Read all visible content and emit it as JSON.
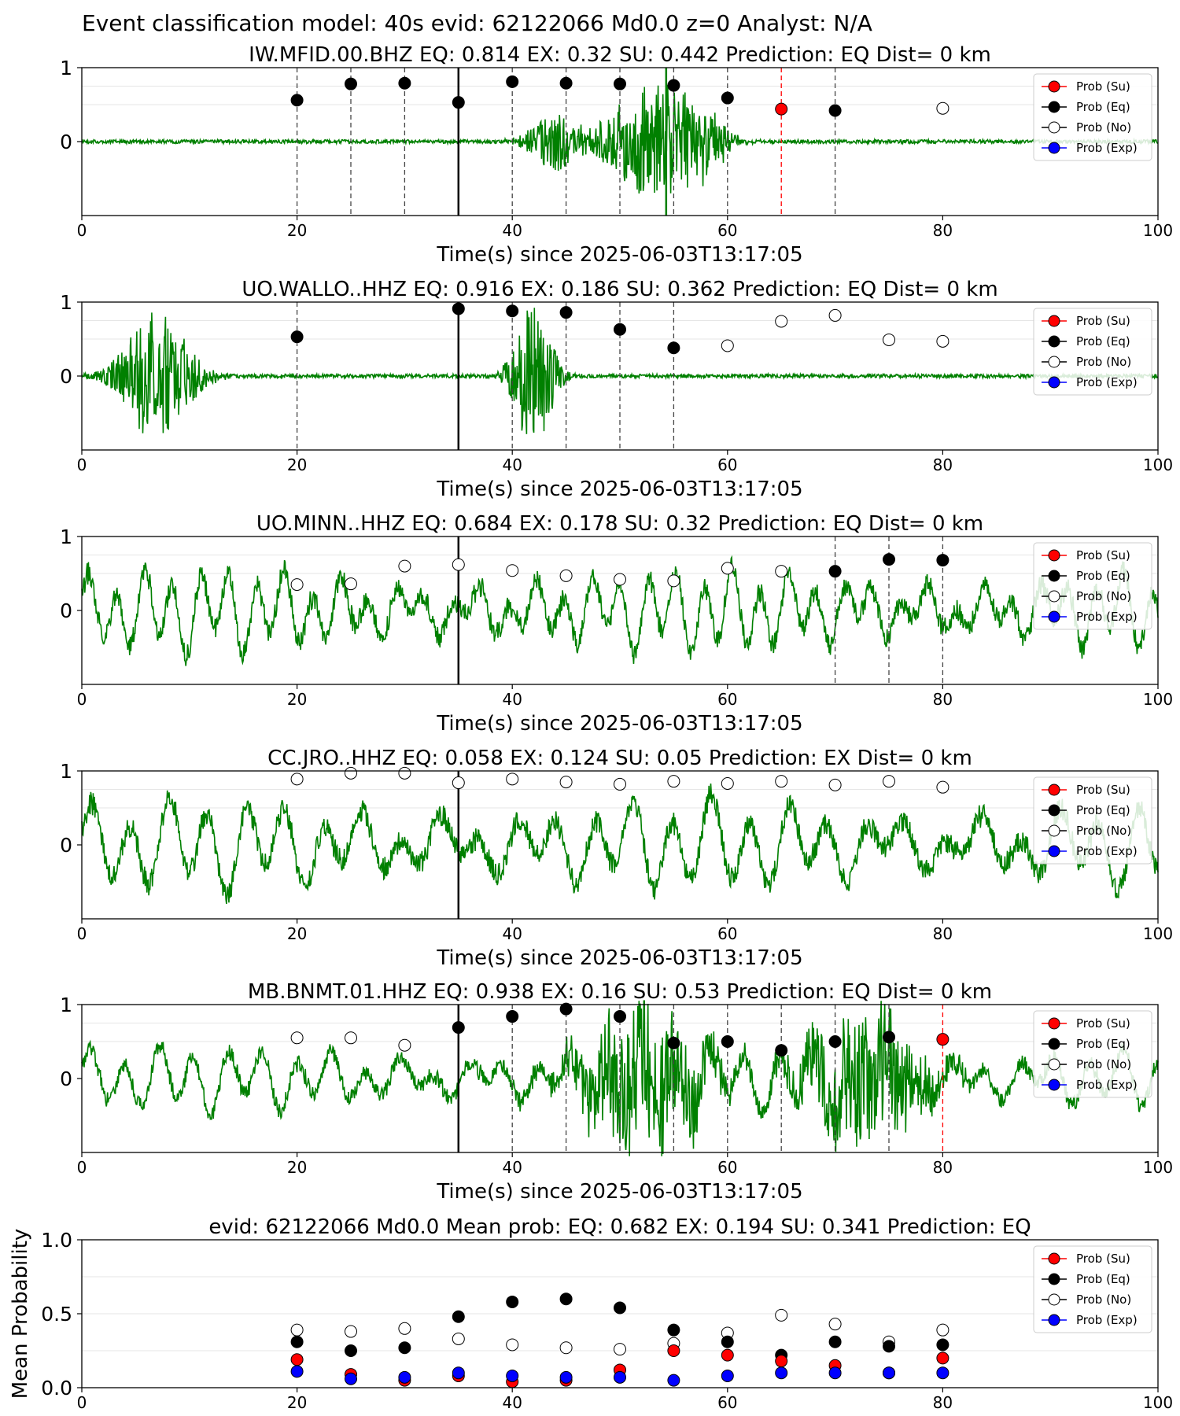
{
  "suptitle": "Event classification model: 40s evid: 62122066 Md0.0 z=0 Analyst: N/A",
  "colors": {
    "waveform": "#008000",
    "su": "#ff0000",
    "eq": "#000000",
    "no": "#ffffff",
    "exp": "#0000ff",
    "pick_line": "#000000",
    "su_line": "#ff0000",
    "grid": "#e6e6e6"
  },
  "legend_labels": [
    "Prob (Su)",
    "Prob (Eq)",
    "Prob (No)",
    "Prob (Exp)"
  ],
  "chart_data": [
    {
      "type": "scatter",
      "id": "station-1",
      "title": "IW.MFID.00.BHZ   EQ: 0.814  EX: 0.32  SU: 0.442   Prediction: EQ    Dist= 0 km",
      "xlabel": "Time(s) since 2025-06-03T13:17:05",
      "xlim": [
        0,
        100
      ],
      "ylim": [
        -1,
        1
      ],
      "xticks": [
        "0",
        "20",
        "40",
        "60",
        "80",
        "100"
      ],
      "yticks": [
        "0",
        "1"
      ],
      "legend_position": "top-right",
      "pick_time": 35,
      "marked_lines": [
        {
          "x": 54.3,
          "color": "green"
        }
      ],
      "waveform": {
        "style": "burst",
        "bursts": [
          {
            "t": 44,
            "a": 0.35,
            "w": 2.5
          },
          {
            "t": 53,
            "a": 0.7,
            "w": 4.5
          },
          {
            "t": 57,
            "a": 0.4,
            "w": 3
          }
        ]
      },
      "points": [
        {
          "x": 20,
          "y": 0.56,
          "cls": "eq",
          "line": true
        },
        {
          "x": 25,
          "y": 0.78,
          "cls": "eq",
          "line": true
        },
        {
          "x": 30,
          "y": 0.79,
          "cls": "eq",
          "line": true
        },
        {
          "x": 35,
          "y": 0.53,
          "cls": "eq",
          "line": true
        },
        {
          "x": 40,
          "y": 0.81,
          "cls": "eq",
          "line": true
        },
        {
          "x": 45,
          "y": 0.79,
          "cls": "eq",
          "line": true
        },
        {
          "x": 50,
          "y": 0.78,
          "cls": "eq",
          "line": true
        },
        {
          "x": 55,
          "y": 0.76,
          "cls": "eq",
          "line": true
        },
        {
          "x": 60,
          "y": 0.59,
          "cls": "eq",
          "line": true
        },
        {
          "x": 65,
          "y": 0.44,
          "cls": "su",
          "line": true
        },
        {
          "x": 70,
          "y": 0.42,
          "cls": "eq",
          "line": true
        },
        {
          "x": 80,
          "y": 0.45,
          "cls": "no",
          "line": false
        }
      ]
    },
    {
      "type": "scatter",
      "id": "station-2",
      "title": "UO.WALLO..HHZ   EQ: 0.916  EX: 0.186  SU: 0.362   Prediction: EQ    Dist= 0 km",
      "xlabel": "Time(s) since 2025-06-03T13:17:05",
      "xlim": [
        0,
        100
      ],
      "ylim": [
        -1,
        1
      ],
      "xticks": [
        "0",
        "20",
        "40",
        "60",
        "80",
        "100"
      ],
      "yticks": [
        "0",
        "1"
      ],
      "legend_position": "top-right",
      "pick_time": 35,
      "marked_lines": [],
      "waveform": {
        "style": "burst",
        "bursts": [
          {
            "t": 7,
            "a": 0.8,
            "w": 3.5
          },
          {
            "t": 42,
            "a": 0.9,
            "w": 2
          }
        ]
      },
      "points": [
        {
          "x": 20,
          "y": 0.53,
          "cls": "eq",
          "line": true
        },
        {
          "x": 35,
          "y": 0.91,
          "cls": "eq",
          "line": true
        },
        {
          "x": 40,
          "y": 0.88,
          "cls": "eq",
          "line": true
        },
        {
          "x": 45,
          "y": 0.86,
          "cls": "eq",
          "line": true
        },
        {
          "x": 50,
          "y": 0.63,
          "cls": "eq",
          "line": true
        },
        {
          "x": 55,
          "y": 0.38,
          "cls": "eq",
          "line": true
        },
        {
          "x": 60,
          "y": 0.41,
          "cls": "no",
          "line": false
        },
        {
          "x": 65,
          "y": 0.74,
          "cls": "no",
          "line": false
        },
        {
          "x": 70,
          "y": 0.82,
          "cls": "no",
          "line": false
        },
        {
          "x": 75,
          "y": 0.49,
          "cls": "no",
          "line": false
        },
        {
          "x": 80,
          "y": 0.47,
          "cls": "no",
          "line": false
        }
      ]
    },
    {
      "type": "scatter",
      "id": "station-3",
      "title": "UO.MINN..HHZ   EQ: 0.684  EX: 0.178  SU: 0.32   Prediction: EQ    Dist= 0 km",
      "xlabel": "Time(s) since 2025-06-03T13:17:05",
      "xlim": [
        0,
        100
      ],
      "ylim": [
        -1,
        1
      ],
      "xticks": [
        "0",
        "20",
        "40",
        "60",
        "80",
        "100"
      ],
      "yticks": [
        "0",
        "1"
      ],
      "legend_position": "top-right",
      "pick_time": 35,
      "marked_lines": [],
      "waveform": {
        "style": "wave",
        "amp": 0.45,
        "period": 2.6
      },
      "points": [
        {
          "x": 20,
          "y": 0.35,
          "cls": "no",
          "line": false
        },
        {
          "x": 25,
          "y": 0.36,
          "cls": "no",
          "line": false
        },
        {
          "x": 30,
          "y": 0.6,
          "cls": "no",
          "line": false
        },
        {
          "x": 35,
          "y": 0.62,
          "cls": "no",
          "line": false
        },
        {
          "x": 40,
          "y": 0.54,
          "cls": "no",
          "line": false
        },
        {
          "x": 45,
          "y": 0.47,
          "cls": "no",
          "line": false
        },
        {
          "x": 50,
          "y": 0.42,
          "cls": "no",
          "line": false
        },
        {
          "x": 55,
          "y": 0.4,
          "cls": "no",
          "line": false
        },
        {
          "x": 60,
          "y": 0.57,
          "cls": "no",
          "line": false
        },
        {
          "x": 65,
          "y": 0.53,
          "cls": "no",
          "line": false
        },
        {
          "x": 70,
          "y": 0.53,
          "cls": "eq",
          "line": true
        },
        {
          "x": 75,
          "y": 0.69,
          "cls": "eq",
          "line": true
        },
        {
          "x": 80,
          "y": 0.68,
          "cls": "eq",
          "line": true
        }
      ]
    },
    {
      "type": "scatter",
      "id": "station-4",
      "title": "CC.JRO..HHZ   EQ: 0.058  EX: 0.124  SU: 0.05   Prediction: EX    Dist= 0 km",
      "xlabel": "Time(s) since 2025-06-03T13:17:05",
      "xlim": [
        0,
        100
      ],
      "ylim": [
        -1,
        1
      ],
      "xticks": [
        "0",
        "20",
        "40",
        "60",
        "80",
        "100"
      ],
      "yticks": [
        "0",
        "1"
      ],
      "legend_position": "top-right",
      "pick_time": 35,
      "marked_lines": [],
      "waveform": {
        "style": "wave",
        "amp": 0.5,
        "period": 3.6
      },
      "points": [
        {
          "x": 20,
          "y": 0.89,
          "cls": "no",
          "line": false
        },
        {
          "x": 25,
          "y": 0.97,
          "cls": "no",
          "line": false
        },
        {
          "x": 30,
          "y": 0.97,
          "cls": "no",
          "line": false
        },
        {
          "x": 35,
          "y": 0.84,
          "cls": "no",
          "line": false
        },
        {
          "x": 40,
          "y": 0.89,
          "cls": "no",
          "line": false
        },
        {
          "x": 45,
          "y": 0.85,
          "cls": "no",
          "line": false
        },
        {
          "x": 50,
          "y": 0.82,
          "cls": "no",
          "line": false
        },
        {
          "x": 55,
          "y": 0.86,
          "cls": "no",
          "line": false
        },
        {
          "x": 60,
          "y": 0.83,
          "cls": "no",
          "line": false
        },
        {
          "x": 65,
          "y": 0.86,
          "cls": "no",
          "line": false
        },
        {
          "x": 70,
          "y": 0.81,
          "cls": "no",
          "line": false
        },
        {
          "x": 75,
          "y": 0.86,
          "cls": "no",
          "line": false
        },
        {
          "x": 80,
          "y": 0.78,
          "cls": "no",
          "line": false
        }
      ]
    },
    {
      "type": "scatter",
      "id": "station-5",
      "title": "MB.BNMT.01.HHZ   EQ: 0.938  EX: 0.16  SU: 0.53   Prediction: EQ    Dist= 0 km",
      "xlabel": "Time(s) since 2025-06-03T13:17:05",
      "xlim": [
        0,
        100
      ],
      "ylim": [
        -1,
        1
      ],
      "xticks": [
        "0",
        "20",
        "40",
        "60",
        "80",
        "100"
      ],
      "yticks": [
        "0",
        "1"
      ],
      "legend_position": "top-right",
      "pick_time": 35,
      "marked_lines": [],
      "waveform": {
        "style": "mixed",
        "amp": 0.35,
        "period": 3.2,
        "bursts": [
          {
            "t": 52,
            "a": 0.85,
            "w": 6
          },
          {
            "t": 73,
            "a": 0.8,
            "w": 6
          }
        ]
      },
      "points": [
        {
          "x": 20,
          "y": 0.55,
          "cls": "no",
          "line": false
        },
        {
          "x": 25,
          "y": 0.55,
          "cls": "no",
          "line": false
        },
        {
          "x": 30,
          "y": 0.45,
          "cls": "no",
          "line": false
        },
        {
          "x": 35,
          "y": 0.69,
          "cls": "eq",
          "line": false
        },
        {
          "x": 40,
          "y": 0.84,
          "cls": "eq",
          "line": true
        },
        {
          "x": 45,
          "y": 0.94,
          "cls": "eq",
          "line": true
        },
        {
          "x": 50,
          "y": 0.84,
          "cls": "eq",
          "line": true
        },
        {
          "x": 55,
          "y": 0.48,
          "cls": "eq",
          "line": true
        },
        {
          "x": 60,
          "y": 0.5,
          "cls": "eq",
          "line": true
        },
        {
          "x": 65,
          "y": 0.38,
          "cls": "eq",
          "line": true
        },
        {
          "x": 70,
          "y": 0.5,
          "cls": "eq",
          "line": true
        },
        {
          "x": 75,
          "y": 0.56,
          "cls": "eq",
          "line": true
        },
        {
          "x": 80,
          "y": 0.53,
          "cls": "su",
          "line": true
        }
      ]
    },
    {
      "type": "scatter",
      "id": "mean",
      "title": "evid: 62122066  Md0.0   Mean prob:   EQ: 0.682  EX: 0.194  SU: 0.341   Prediction: EQ",
      "ylabel": "Mean Probability",
      "xlim": [
        0,
        100
      ],
      "ylim": [
        0,
        1
      ],
      "xticks": [
        "0",
        "20",
        "40",
        "60",
        "80",
        "100"
      ],
      "yticks": [
        "0.0",
        "0.5",
        "1.0"
      ],
      "legend_position": "top-right",
      "x": [
        20,
        25,
        30,
        35,
        40,
        45,
        50,
        55,
        60,
        65,
        70,
        75,
        80
      ],
      "series": [
        {
          "name": "Prob (No)",
          "cls": "no",
          "values": [
            0.39,
            0.38,
            0.4,
            0.33,
            0.29,
            0.27,
            0.26,
            0.3,
            0.37,
            0.49,
            0.43,
            0.31,
            0.39
          ]
        },
        {
          "name": "Prob (Eq)",
          "cls": "eq",
          "values": [
            0.31,
            0.25,
            0.27,
            0.48,
            0.58,
            0.6,
            0.54,
            0.39,
            0.31,
            0.22,
            0.31,
            0.28,
            0.29
          ]
        },
        {
          "name": "Prob (Su)",
          "cls": "su",
          "values": [
            0.19,
            0.09,
            0.05,
            0.08,
            0.04,
            0.05,
            0.12,
            0.25,
            0.22,
            0.18,
            0.15,
            0.1,
            0.2
          ]
        },
        {
          "name": "Prob (Exp)",
          "cls": "exp",
          "values": [
            0.11,
            0.06,
            0.07,
            0.1,
            0.08,
            0.07,
            0.07,
            0.05,
            0.08,
            0.1,
            0.1,
            0.1,
            0.1
          ]
        }
      ]
    }
  ]
}
